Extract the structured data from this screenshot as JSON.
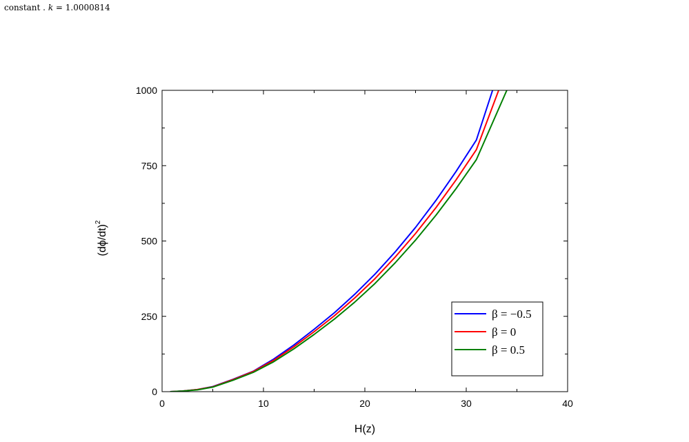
{
  "caption": {
    "prefix": "constant . ",
    "k_symbol": "k",
    "k_equation": " = 1.0000814"
  },
  "chart_data": {
    "type": "line",
    "xlabel": "H(z)",
    "ylabel_base": "(dϕ/dt)",
    "ylabel_sup": "2",
    "xlim": [
      0,
      40
    ],
    "ylim": [
      0,
      1000
    ],
    "x_ticks": [
      0,
      10,
      20,
      30,
      40
    ],
    "x_tick_labels": [
      "0",
      "10",
      "20",
      "30",
      "40"
    ],
    "y_ticks": [
      0,
      250,
      500,
      750,
      1000
    ],
    "y_tick_labels": [
      "0",
      "250",
      "500",
      "750",
      "1000"
    ],
    "grid": false,
    "legend_position": "bottom-right",
    "series": [
      {
        "name": "β = −0.5",
        "color": "#0000ff",
        "x": [
          0.8,
          2,
          3.5,
          5,
          7,
          9,
          11,
          13,
          15,
          17,
          19,
          21,
          23,
          25,
          27,
          29,
          31,
          32.6
        ],
        "y": [
          0,
          2,
          7,
          17,
          41,
          68,
          108,
          155,
          207,
          262,
          323,
          390,
          464,
          545,
          634,
          731,
          835,
          1000
        ]
      },
      {
        "name": "β = 0",
        "color": "#ff0000",
        "x": [
          0.8,
          2,
          3.5,
          5,
          7,
          9,
          11,
          13,
          15,
          17,
          19,
          21,
          23,
          25,
          27,
          29,
          31,
          33.2
        ],
        "y": [
          0,
          2,
          7,
          16,
          40,
          67,
          104,
          149,
          199,
          252,
          311,
          375,
          447,
          525,
          610,
          703,
          803,
          1000
        ]
      },
      {
        "name": "β = 0.5",
        "color": "#008000",
        "x": [
          0.8,
          2,
          3.5,
          5,
          7,
          9,
          11,
          13,
          15,
          17,
          19,
          21,
          23,
          25,
          27,
          29,
          31,
          34.0
        ],
        "y": [
          0,
          2,
          6,
          15,
          38,
          64,
          99,
          142,
          190,
          241,
          297,
          359,
          428,
          503,
          585,
          674,
          770,
          1000
        ]
      }
    ]
  }
}
